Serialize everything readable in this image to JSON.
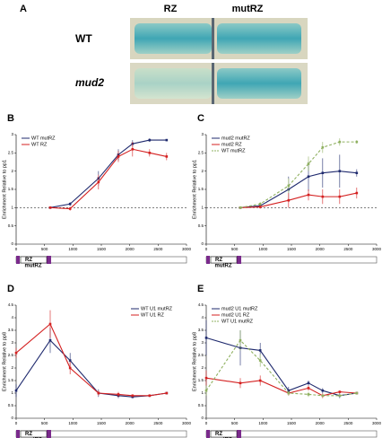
{
  "panel_a": {
    "label": "A",
    "columns": [
      "RZ",
      "mutRZ"
    ],
    "rows": [
      "WT",
      "mud2"
    ]
  },
  "chart_data": [
    {
      "label": "B",
      "type": "line",
      "ylabel": "Enrichment Relative to pp1",
      "xlim": [
        0,
        3000
      ],
      "xticks": [
        0,
        500,
        1000,
        1500,
        2000,
        2500,
        3000
      ],
      "ylim": [
        0,
        3
      ],
      "yticks": [
        0,
        0.5,
        1,
        1.5,
        2,
        2.5,
        3
      ],
      "hline": 1,
      "diagram_labels": [
        "RZ",
        "mutRZ"
      ],
      "x": [
        600,
        950,
        1450,
        1800,
        2050,
        2350,
        2650
      ],
      "series": [
        {
          "name": "WT mutRZ",
          "color": "#1f2a6e",
          "dashed": false,
          "values": [
            1.0,
            1.1,
            1.8,
            2.45,
            2.75,
            2.85,
            2.85
          ],
          "errors": [
            0,
            0.05,
            0.2,
            0.15,
            0.1,
            0.05,
            0
          ]
        },
        {
          "name": "WT RZ",
          "color": "#d42020",
          "dashed": false,
          "values": [
            1.0,
            0.97,
            1.7,
            2.4,
            2.6,
            2.5,
            2.4
          ],
          "errors": [
            0,
            0.05,
            0.2,
            0.15,
            0.2,
            0.1,
            0.1
          ]
        }
      ]
    },
    {
      "label": "C",
      "type": "line",
      "ylabel": "Enrichment Relative to pp1",
      "xlim": [
        0,
        3000
      ],
      "xticks": [
        0,
        500,
        1000,
        1500,
        2000,
        2500,
        3000
      ],
      "ylim": [
        0,
        3
      ],
      "yticks": [
        0,
        0.5,
        1,
        1.5,
        2,
        2.5,
        3
      ],
      "hline": 1,
      "diagram_labels": [
        "RZ",
        "mutRZ"
      ],
      "x": [
        600,
        950,
        1450,
        1800,
        2050,
        2350,
        2650
      ],
      "series": [
        {
          "name": "mud2 mutRZ",
          "color": "#1f2a6e",
          "dashed": false,
          "values": [
            1.0,
            1.05,
            1.5,
            1.85,
            1.95,
            2.0,
            1.95
          ],
          "errors": [
            0,
            0.05,
            0.35,
            0.4,
            0.4,
            0.45,
            0.1
          ]
        },
        {
          "name": "mud2 RZ",
          "color": "#d42020",
          "dashed": false,
          "values": [
            1.0,
            1.02,
            1.2,
            1.35,
            1.3,
            1.3,
            1.4
          ],
          "errors": [
            0,
            0.05,
            0.2,
            0.15,
            0.2,
            0.2,
            0.15
          ]
        },
        {
          "name": "WT mutRZ",
          "color": "#8fb060",
          "dashed": true,
          "values": [
            1.0,
            1.1,
            1.6,
            2.2,
            2.65,
            2.8,
            2.8
          ],
          "errors": [
            0,
            0.05,
            0.2,
            0.2,
            0.15,
            0.1,
            0.05
          ]
        }
      ]
    },
    {
      "label": "D",
      "type": "line",
      "ylabel": "Enrichment Relative to pp8",
      "xlim": [
        0,
        3000
      ],
      "xticks": [
        0,
        500,
        1000,
        1500,
        2000,
        2500,
        3000
      ],
      "ylim": [
        0,
        4.5
      ],
      "yticks": [
        0,
        0.5,
        1,
        1.5,
        2,
        2.5,
        3,
        3.5,
        4,
        4.5
      ],
      "diagram_labels": [
        "RZ",
        "mutRZ"
      ],
      "x": [
        0,
        600,
        950,
        1450,
        1800,
        2050,
        2350,
        2650
      ],
      "series": [
        {
          "name": "WT U1 mutRZ",
          "color": "#1f2a6e",
          "dashed": false,
          "values": [
            1.1,
            3.1,
            2.3,
            1.0,
            0.9,
            0.85,
            0.9,
            1.0
          ],
          "errors": [
            0.25,
            0.5,
            0.3,
            0.15,
            0.1,
            0.05,
            0.05,
            0
          ]
        },
        {
          "name": "WT U1 RZ",
          "color": "#d42020",
          "dashed": false,
          "values": [
            2.6,
            3.75,
            2.0,
            1.0,
            0.95,
            0.9,
            0.9,
            1.0
          ],
          "errors": [
            0.2,
            0.55,
            0.25,
            0.1,
            0.1,
            0.05,
            0.05,
            0
          ]
        }
      ]
    },
    {
      "label": "E",
      "type": "line",
      "ylabel": "Enrichment Relative to pp8",
      "xlim": [
        0,
        3000
      ],
      "xticks": [
        0,
        500,
        1000,
        1500,
        2000,
        2500,
        3000
      ],
      "ylim": [
        0,
        4.5
      ],
      "yticks": [
        0,
        0.5,
        1,
        1.5,
        2,
        2.5,
        3,
        3.5,
        4,
        4.5
      ],
      "diagram_labels": [
        "RZ",
        "mutRZ"
      ],
      "x": [
        0,
        600,
        950,
        1450,
        1800,
        2050,
        2350,
        2650
      ],
      "series": [
        {
          "name": "mud2 U1 mutRZ",
          "color": "#1f2a6e",
          "dashed": false,
          "values": [
            3.2,
            2.8,
            2.7,
            1.1,
            1.4,
            1.1,
            0.9,
            1.0
          ],
          "errors": [
            0.7,
            0.7,
            0.3,
            0.15,
            0.1,
            0.1,
            0.1,
            0
          ]
        },
        {
          "name": "mud2 U1 RZ",
          "color": "#d42020",
          "dashed": false,
          "values": [
            1.6,
            1.4,
            1.5,
            1.0,
            1.2,
            0.9,
            1.05,
            1.0
          ],
          "errors": [
            0.3,
            0.2,
            0.2,
            0.1,
            0.1,
            0.1,
            0.05,
            0
          ]
        },
        {
          "name": "WT U1 mutRZ",
          "color": "#8fb060",
          "dashed": true,
          "values": [
            1.1,
            3.1,
            2.3,
            1.0,
            0.95,
            0.9,
            0.9,
            1.0
          ],
          "errors": [
            0.2,
            0.4,
            0.25,
            0.1,
            0.1,
            0.05,
            0.05,
            0
          ]
        }
      ]
    }
  ]
}
